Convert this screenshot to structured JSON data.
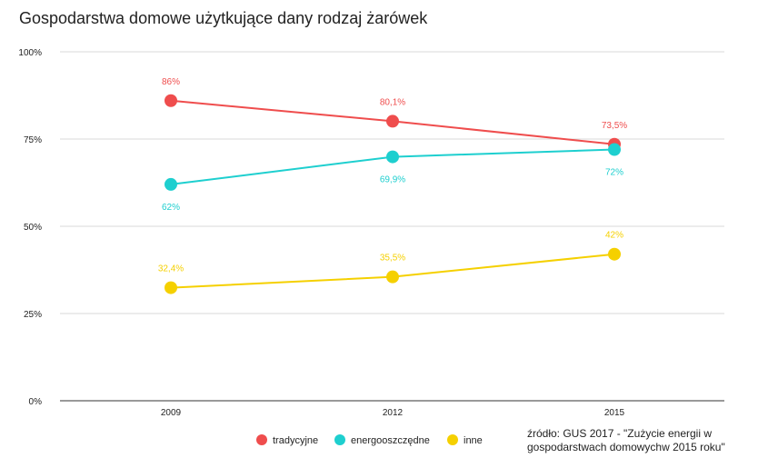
{
  "chart_data": {
    "type": "line",
    "title": "Gospodarstwa domowe użytkujące dany rodzaj żarówek",
    "xlabel": "",
    "ylabel": "",
    "categories": [
      "2009",
      "2012",
      "2015"
    ],
    "ylim": [
      0,
      100
    ],
    "yticks": [
      {
        "value": 0,
        "label": "0%"
      },
      {
        "value": 25,
        "label": "25%"
      },
      {
        "value": 50,
        "label": "50%"
      },
      {
        "value": 75,
        "label": "75%"
      },
      {
        "value": 100,
        "label": "100%"
      }
    ],
    "grid": true,
    "legend_position": "bottom",
    "series": [
      {
        "name": "tradycyjne",
        "color": "#ef4d4d",
        "values": [
          86,
          80.1,
          73.5
        ],
        "labels": [
          "86%",
          "80,1%",
          "73,5%"
        ],
        "label_side": [
          "above",
          "above",
          "above"
        ]
      },
      {
        "name": "energooszczędne",
        "color": "#1ecfcf",
        "values": [
          62,
          69.9,
          72
        ],
        "labels": [
          "62%",
          "69,9%",
          "72%"
        ],
        "label_side": [
          "below",
          "below",
          "below"
        ]
      },
      {
        "name": "inne",
        "color": "#f5d000",
        "values": [
          32.4,
          35.5,
          42
        ],
        "labels": [
          "32,4%",
          "35,5%",
          "42%"
        ],
        "label_side": [
          "above",
          "above",
          "above"
        ]
      }
    ],
    "source_lines": [
      "źródło: GUS 2017 - \"Zużycie energii w",
      "gospodarstwach domowychw 2015 roku\""
    ]
  }
}
